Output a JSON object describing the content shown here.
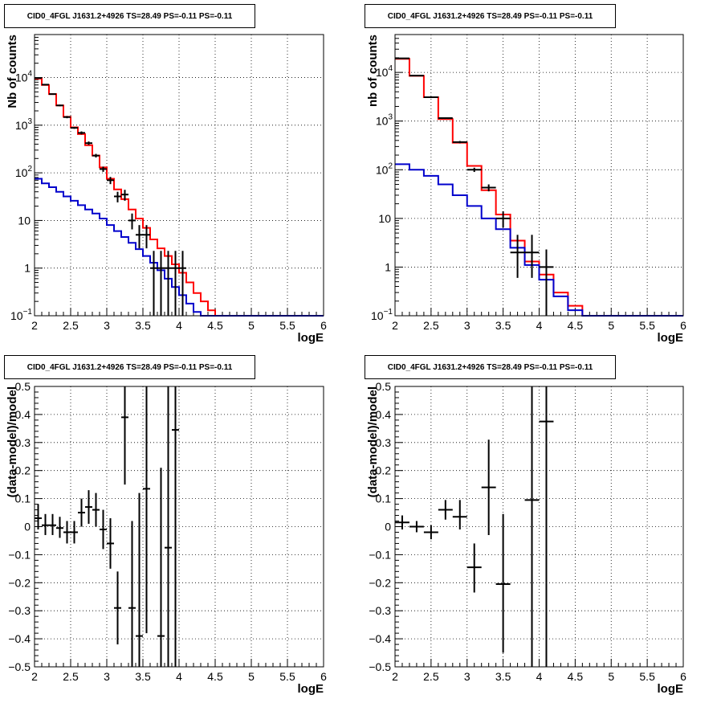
{
  "figure": {
    "panel_title": "CID0_4FGL J1631.2+4926 TS=28.49 PS=-0.11 PS=-0.11"
  },
  "colors": {
    "data": "#000000",
    "model_total": "#ff0000",
    "model_background": "#0000cc"
  },
  "chart_data": [
    {
      "type": "line",
      "id": "counts-fine",
      "title": "CID0_4FGL J1631.2+4926 TS=28.49 PS=-0.11 PS=-0.11",
      "xlabel": "logE",
      "ylabel": "Nb of counts",
      "xlim": [
        2,
        6
      ],
      "ylim": [
        0.1,
        80000
      ],
      "yscale": "log",
      "grid": true,
      "xticks": [
        "2",
        "2.5",
        "3",
        "3.5",
        "4",
        "4.5",
        "5",
        "5.5",
        "6"
      ],
      "yticks": [
        {
          "v": 0.1,
          "label": "10",
          "exp": "−1"
        },
        {
          "v": 1,
          "label": "1",
          "exp": ""
        },
        {
          "v": 10,
          "label": "10",
          "exp": ""
        },
        {
          "v": 100,
          "label": "10",
          "exp": "2"
        },
        {
          "v": 1000,
          "label": "10",
          "exp": "3"
        },
        {
          "v": 10000,
          "label": "10",
          "exp": "4"
        }
      ],
      "bin_width": 0.1,
      "series": [
        {
          "name": "model_total",
          "kind": "step",
          "x": [
            2.05,
            2.15,
            2.25,
            2.35,
            2.45,
            2.55,
            2.65,
            2.75,
            2.85,
            2.95,
            3.05,
            3.15,
            3.25,
            3.35,
            3.45,
            3.55,
            3.65,
            3.75,
            3.85,
            3.95,
            4.05,
            4.15,
            4.25,
            4.35,
            4.45,
            4.55,
            4.65,
            4.75,
            4.85,
            4.95,
            5.05,
            5.15,
            5.25,
            5.35,
            5.45,
            5.55,
            5.65,
            5.75,
            5.85,
            5.95
          ],
          "y": [
            9500,
            7000,
            4500,
            2600,
            1500,
            900,
            650,
            380,
            230,
            130,
            75,
            45,
            28,
            17,
            11,
            7,
            4,
            2.6,
            1.8,
            1.2,
            0.8,
            0.5,
            0.3,
            0.2,
            0.13,
            0.1,
            0.1,
            0.1,
            0.1,
            0.1,
            0.1,
            0.1,
            0.1,
            0.1,
            0.1,
            0.1,
            0.1,
            0.1,
            0.1,
            0.1
          ]
        },
        {
          "name": "model_background",
          "kind": "step",
          "x": [
            2.05,
            2.15,
            2.25,
            2.35,
            2.45,
            2.55,
            2.65,
            2.75,
            2.85,
            2.95,
            3.05,
            3.15,
            3.25,
            3.35,
            3.45,
            3.55,
            3.65,
            3.75,
            3.85,
            3.95,
            4.05,
            4.15,
            4.25,
            4.35,
            4.45,
            4.55,
            4.65,
            4.75,
            4.85,
            4.95,
            5.05,
            5.15,
            5.25,
            5.35,
            5.45,
            5.55,
            5.65,
            5.75,
            5.85,
            5.95
          ],
          "y": [
            75,
            60,
            50,
            40,
            32,
            26,
            21,
            17,
            14,
            11,
            8,
            6,
            4.5,
            3.4,
            2.5,
            1.8,
            1.3,
            0.9,
            0.6,
            0.4,
            0.27,
            0.18,
            0.12,
            0.1,
            0.1,
            0.1,
            0.1,
            0.1,
            0.1,
            0.1,
            0.1,
            0.1,
            0.1,
            0.1,
            0.1,
            0.1,
            0.1,
            0.1,
            0.1,
            0.1
          ]
        },
        {
          "name": "data",
          "kind": "errorbar",
          "x": [
            2.05,
            2.15,
            2.25,
            2.35,
            2.45,
            2.55,
            2.65,
            2.75,
            2.85,
            2.95,
            3.05,
            3.15,
            3.25,
            3.35,
            3.45,
            3.55,
            3.65,
            3.75,
            3.85,
            3.95,
            4.05
          ],
          "y": [
            9800,
            7100,
            4500,
            2600,
            1480,
            880,
            690,
            420,
            230,
            120,
            70,
            32,
            35,
            10,
            5,
            5,
            1,
            1,
            1,
            1,
            1
          ],
          "ylo": [
            9600,
            6900,
            4400,
            2500,
            1400,
            840,
            640,
            385,
            210,
            105,
            58,
            24,
            26,
            6.5,
            2.6,
            2.6,
            0.1,
            0.1,
            0.1,
            0.1,
            0.1
          ],
          "yhi": [
            10000,
            7300,
            4600,
            2700,
            1560,
            920,
            740,
            455,
            250,
            135,
            82,
            40,
            44,
            14,
            8,
            8,
            2.3,
            2.3,
            2.3,
            2.3,
            2.3
          ]
        }
      ]
    },
    {
      "type": "line",
      "id": "counts-coarse",
      "title": "CID0_4FGL J1631.2+4926 TS=28.49 PS=-0.11 PS=-0.11",
      "xlabel": "logE",
      "ylabel": "nb of counts",
      "xlim": [
        2,
        6
      ],
      "ylim": [
        0.1,
        60000
      ],
      "yscale": "log",
      "grid": true,
      "xticks": [
        "2",
        "2.5",
        "3",
        "3.5",
        "4",
        "4.5",
        "5",
        "5.5",
        "6"
      ],
      "yticks": [
        {
          "v": 0.1,
          "label": "10",
          "exp": "−1"
        },
        {
          "v": 1,
          "label": "1",
          "exp": ""
        },
        {
          "v": 10,
          "label": "10",
          "exp": ""
        },
        {
          "v": 100,
          "label": "10",
          "exp": "2"
        },
        {
          "v": 1000,
          "label": "10",
          "exp": "3"
        },
        {
          "v": 10000,
          "label": "10",
          "exp": "4"
        }
      ],
      "bin_width": 0.2,
      "series": [
        {
          "name": "model_total",
          "kind": "step",
          "x": [
            2.1,
            2.3,
            2.5,
            2.7,
            2.9,
            3.1,
            3.3,
            3.5,
            3.7,
            3.9,
            4.1,
            4.3,
            4.5,
            4.7,
            4.9,
            5.1,
            5.3,
            5.5,
            5.7,
            5.9
          ],
          "y": [
            19000,
            8500,
            3100,
            1100,
            360,
            120,
            38,
            12,
            3.5,
            1.3,
            0.7,
            0.3,
            0.16,
            0.1,
            0.1,
            0.1,
            0.1,
            0.1,
            0.1,
            0.1
          ]
        },
        {
          "name": "model_background",
          "kind": "step",
          "x": [
            2.1,
            2.3,
            2.5,
            2.7,
            2.9,
            3.1,
            3.3,
            3.5,
            3.7,
            3.9,
            4.1,
            4.3,
            4.5,
            4.7,
            4.9,
            5.1,
            5.3,
            5.5,
            5.7,
            5.9
          ],
          "y": [
            130,
            100,
            75,
            50,
            30,
            18,
            10,
            6,
            2.5,
            1.1,
            0.55,
            0.25,
            0.13,
            0.1,
            0.1,
            0.1,
            0.1,
            0.1,
            0.1,
            0.1
          ]
        },
        {
          "name": "data",
          "kind": "errorbar",
          "x": [
            2.1,
            2.3,
            2.5,
            2.7,
            2.9,
            3.1,
            3.3,
            3.5,
            3.7,
            3.9,
            4.1
          ],
          "y": [
            19500,
            8600,
            3100,
            1150,
            370,
            100,
            43,
            10,
            2,
            2,
            1
          ],
          "ylo": [
            19300,
            8500,
            3050,
            1120,
            350,
            90,
            36,
            6.5,
            0.6,
            0.6,
            0.1
          ],
          "yhi": [
            19700,
            8700,
            3150,
            1180,
            390,
            110,
            50,
            14,
            4.6,
            4.6,
            2.3
          ]
        }
      ]
    },
    {
      "type": "scatter",
      "id": "residuals-fine",
      "title": "CID0_4FGL J1631.2+4926 TS=28.49 PS=-0.11 PS=-0.11",
      "xlabel": "logE",
      "ylabel": "(data-model)/model",
      "xlim": [
        2,
        6
      ],
      "ylim": [
        -0.5,
        0.5
      ],
      "yscale": "linear",
      "grid": true,
      "xticks": [
        "2",
        "2.5",
        "3",
        "3.5",
        "4",
        "4.5",
        "5",
        "5.5",
        "6"
      ],
      "yticks": [
        {
          "v": -0.5,
          "label": "−0.5"
        },
        {
          "v": -0.4,
          "label": "−0.4"
        },
        {
          "v": -0.3,
          "label": "−0.3"
        },
        {
          "v": -0.2,
          "label": "−0.2"
        },
        {
          "v": -0.1,
          "label": "−0.1"
        },
        {
          "v": 0,
          "label": "0"
        },
        {
          "v": 0.1,
          "label": "0.1"
        },
        {
          "v": 0.2,
          "label": "0.2"
        },
        {
          "v": 0.3,
          "label": "0.3"
        },
        {
          "v": 0.4,
          "label": "0.4"
        },
        {
          "v": 0.5,
          "label": "0.5"
        }
      ],
      "bin_width": 0.1,
      "series": [
        {
          "name": "data",
          "kind": "errorbar",
          "x": [
            2.05,
            2.15,
            2.25,
            2.35,
            2.45,
            2.55,
            2.65,
            2.75,
            2.85,
            2.95,
            3.05,
            3.15,
            3.25,
            3.35,
            3.45,
            3.55,
            3.75,
            3.85,
            3.95
          ],
          "y": [
            0.03,
            0.005,
            0.005,
            -0.005,
            -0.02,
            -0.02,
            0.05,
            0.07,
            0.06,
            -0.01,
            -0.06,
            -0.29,
            0.39,
            -0.29,
            -0.39,
            0.135,
            -0.39,
            -0.075,
            0.345
          ],
          "ylo": [
            -0.01,
            -0.03,
            -0.03,
            -0.04,
            -0.06,
            -0.06,
            0.0,
            0.01,
            0.0,
            -0.08,
            -0.15,
            -0.42,
            0.15,
            -0.6,
            -0.9,
            -0.38,
            -1.0,
            -0.9,
            -0.7
          ],
          "yhi": [
            0.08,
            0.045,
            0.045,
            0.035,
            0.02,
            0.02,
            0.1,
            0.13,
            0.12,
            0.06,
            0.03,
            -0.16,
            0.63,
            0.02,
            0.12,
            0.65,
            0.21,
            0.96,
            1.4
          ]
        }
      ]
    },
    {
      "type": "scatter",
      "id": "residuals-coarse",
      "title": "CID0_4FGL J1631.2+4926 TS=28.49 PS=-0.11 PS=-0.11",
      "xlabel": "logE",
      "ylabel": "(data-model)/model",
      "xlim": [
        2,
        6
      ],
      "ylim": [
        -0.5,
        0.5
      ],
      "yscale": "linear",
      "grid": true,
      "xticks": [
        "2",
        "2.5",
        "3",
        "3.5",
        "4",
        "4.5",
        "5",
        "5.5",
        "6"
      ],
      "yticks": [
        {
          "v": -0.5,
          "label": "−0.5"
        },
        {
          "v": -0.4,
          "label": "−0.4"
        },
        {
          "v": -0.3,
          "label": "−0.3"
        },
        {
          "v": -0.2,
          "label": "−0.2"
        },
        {
          "v": -0.1,
          "label": "−0.1"
        },
        {
          "v": 0,
          "label": "0"
        },
        {
          "v": 0.1,
          "label": "0.1"
        },
        {
          "v": 0.2,
          "label": "0.2"
        },
        {
          "v": 0.3,
          "label": "0.3"
        },
        {
          "v": 0.4,
          "label": "0.4"
        },
        {
          "v": 0.5,
          "label": "0.5"
        }
      ],
      "bin_width": 0.2,
      "series": [
        {
          "name": "data",
          "kind": "errorbar",
          "x": [
            2.1,
            2.3,
            2.5,
            2.7,
            2.9,
            3.1,
            3.3,
            3.5,
            3.9,
            4.1
          ],
          "y": [
            0.015,
            0.0,
            -0.02,
            0.06,
            0.035,
            -0.145,
            0.14,
            -0.205,
            0.095,
            0.375
          ],
          "ylo": [
            -0.01,
            -0.02,
            -0.045,
            0.025,
            -0.01,
            -0.235,
            -0.03,
            -0.45,
            -1.0,
            -0.9
          ],
          "yhi": [
            0.04,
            0.02,
            0.005,
            0.095,
            0.095,
            -0.06,
            0.31,
            0.045,
            1.2,
            1.4
          ]
        }
      ]
    }
  ]
}
